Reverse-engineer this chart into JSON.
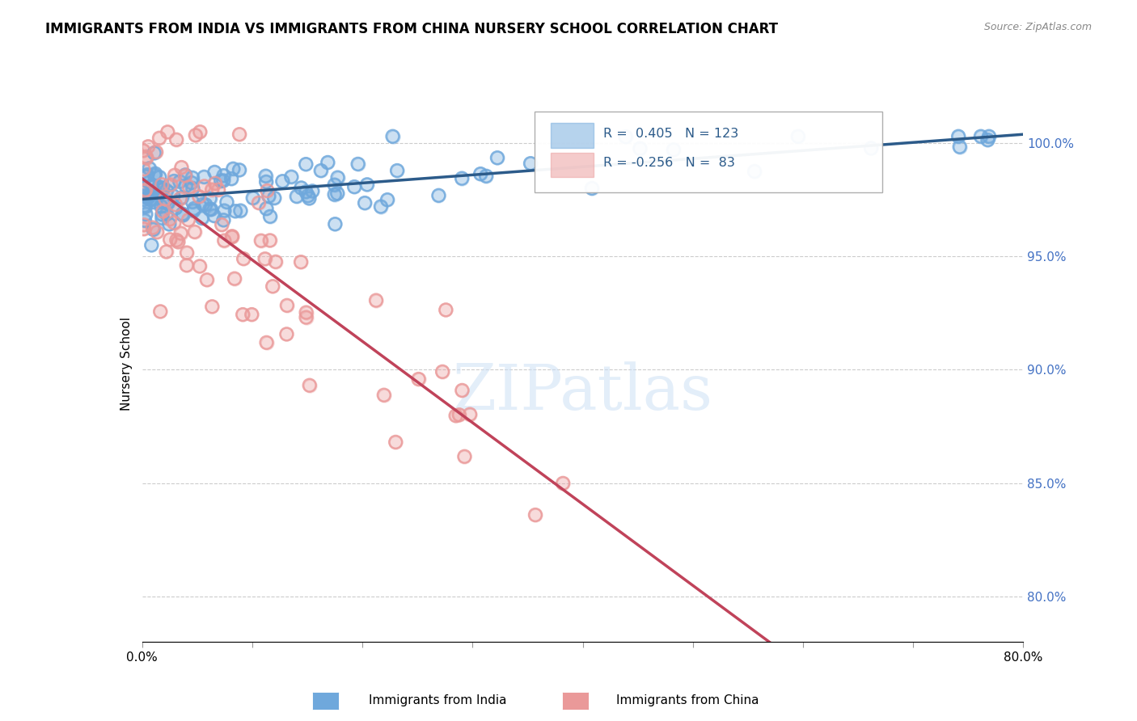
{
  "title": "IMMIGRANTS FROM INDIA VS IMMIGRANTS FROM CHINA NURSERY SCHOOL CORRELATION CHART",
  "source": "Source: ZipAtlas.com",
  "ylabel_left": "Nursery School",
  "x_min": 0.0,
  "x_max": 0.8,
  "y_min": 0.78,
  "y_max": 1.025,
  "y_ticks": [
    0.8,
    0.85,
    0.9,
    0.95,
    1.0
  ],
  "y_tick_labels": [
    "80.0%",
    "85.0%",
    "90.0%",
    "95.0%",
    "100.0%"
  ],
  "india_color": "#6fa8dc",
  "china_color": "#ea9999",
  "india_R": 0.405,
  "india_N": 123,
  "china_R": -0.256,
  "china_N": 83,
  "india_trend_color": "#2c5b8a",
  "china_trend_color": "#c0435a",
  "watermark": "ZIPatlas",
  "background_color": "#ffffff",
  "right_tick_color": "#4472c4"
}
